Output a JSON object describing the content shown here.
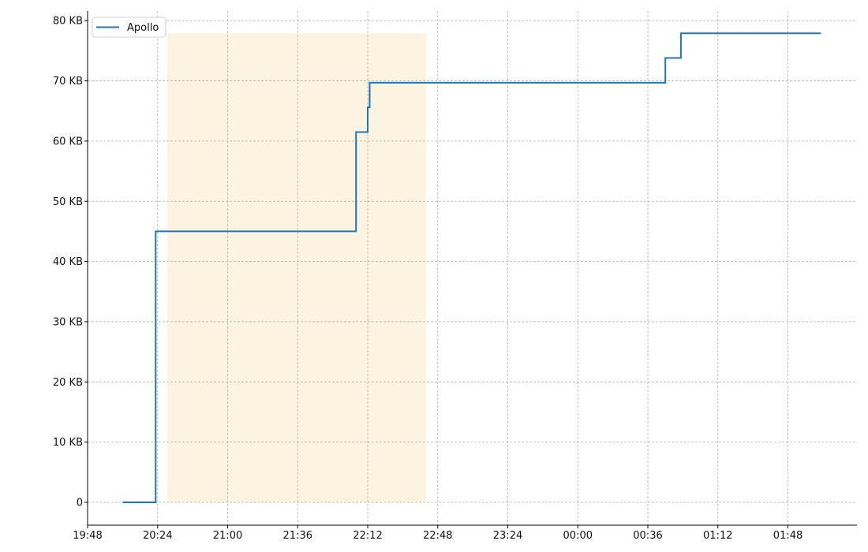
{
  "chart_data": {
    "type": "line",
    "title": "",
    "xlabel": "",
    "ylabel": "",
    "x_unit": "time (HH:MM)",
    "y_unit": "KB",
    "xlim": [
      "19:47",
      "02:13"
    ],
    "ylim": [
      -3.8,
      81.6
    ],
    "x_ticks": [
      "19:48",
      "20:24",
      "21:00",
      "21:36",
      "22:12",
      "22:48",
      "23:24",
      "00:00",
      "00:36",
      "01:12",
      "01:48"
    ],
    "y_ticks": [
      0,
      10,
      20,
      30,
      40,
      50,
      60,
      70,
      80
    ],
    "y_tick_labels": [
      "0",
      "10 KB",
      "20 KB",
      "30 KB",
      "40 KB",
      "50 KB",
      "60 KB",
      "70 KB",
      "80 KB"
    ],
    "grid": true,
    "legend_position": "top-left",
    "series": [
      {
        "name": "Apollo",
        "color": "#1f77b4",
        "step": true,
        "points": [
          [
            "20:06",
            0
          ],
          [
            "20:23",
            0
          ],
          [
            "20:23",
            45
          ],
          [
            "22:06",
            45
          ],
          [
            "22:06",
            61.5
          ],
          [
            "22:12",
            61.5
          ],
          [
            "22:12",
            65.6
          ],
          [
            "22:13",
            65.6
          ],
          [
            "22:13",
            69.7
          ],
          [
            "00:45",
            69.7
          ],
          [
            "00:45",
            73.8
          ],
          [
            "00:53",
            73.8
          ],
          [
            "00:53",
            77.9
          ],
          [
            "02:05",
            77.9
          ]
        ]
      }
    ],
    "highlight_span": {
      "x": [
        "20:29",
        "22:42"
      ],
      "y": [
        0,
        77.9
      ],
      "color": "#fdf3e1"
    }
  }
}
